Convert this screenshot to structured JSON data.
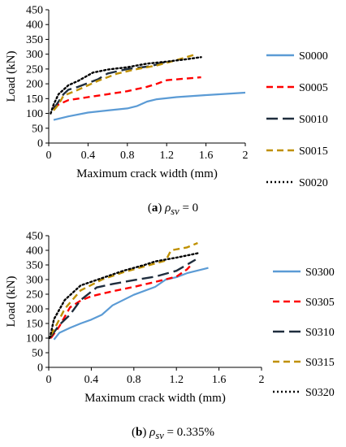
{
  "chart_data": [
    {
      "type": "line",
      "caption_letter": "a",
      "caption_symbol": "ρ",
      "caption_sub": "sv",
      "caption_value": " = 0",
      "xlabel": "Maximum crack width (mm)",
      "ylabel": "Load (kN)",
      "xlim": [
        0,
        2
      ],
      "ylim": [
        0,
        450
      ],
      "xticks": [
        "0",
        "0.4",
        "0.8",
        "1.2",
        "1.6",
        "2"
      ],
      "xtick_values": [
        0,
        0.4,
        0.8,
        1.2,
        1.6,
        2
      ],
      "yticks": [
        "0",
        "50",
        "100",
        "150",
        "200",
        "250",
        "300",
        "350",
        "400",
        "450"
      ],
      "ytick_values": [
        0,
        50,
        100,
        150,
        200,
        250,
        300,
        350,
        400,
        450
      ],
      "grid": false,
      "legend_position": "right",
      "series": [
        {
          "name": "S0000",
          "color": "#5b9bd5",
          "dash": "solid",
          "points": [
            [
              0.05,
              78
            ],
            [
              0.2,
              90
            ],
            [
              0.4,
              103
            ],
            [
              0.6,
              110
            ],
            [
              0.8,
              117
            ],
            [
              0.9,
              125
            ],
            [
              1.0,
              140
            ],
            [
              1.1,
              148
            ],
            [
              1.3,
              155
            ],
            [
              1.6,
              162
            ],
            [
              2.0,
              170
            ]
          ]
        },
        {
          "name": "S0005",
          "color": "#ff0000",
          "dash": "dash",
          "points": [
            [
              0.05,
              120
            ],
            [
              0.1,
              130
            ],
            [
              0.2,
              145
            ],
            [
              0.4,
              155
            ],
            [
              0.6,
              165
            ],
            [
              0.8,
              175
            ],
            [
              1.0,
              190
            ],
            [
              1.1,
              200
            ],
            [
              1.2,
              212
            ],
            [
              1.4,
              218
            ],
            [
              1.55,
              222
            ]
          ]
        },
        {
          "name": "S0010",
          "color": "#1f2d3d",
          "dash": "longdash",
          "points": [
            [
              0.05,
              115
            ],
            [
              0.1,
              140
            ],
            [
              0.15,
              165
            ],
            [
              0.2,
              180
            ],
            [
              0.3,
              190
            ],
            [
              0.5,
              215
            ],
            [
              0.6,
              235
            ],
            [
              0.8,
              250
            ],
            [
              1.0,
              258
            ],
            [
              1.1,
              265
            ],
            [
              1.2,
              275
            ]
          ]
        },
        {
          "name": "S0015",
          "color": "#bf9000",
          "dash": "dash",
          "points": [
            [
              0.05,
              110
            ],
            [
              0.1,
              130
            ],
            [
              0.15,
              160
            ],
            [
              0.3,
              180
            ],
            [
              0.5,
              210
            ],
            [
              0.7,
              235
            ],
            [
              0.9,
              250
            ],
            [
              1.1,
              262
            ],
            [
              1.3,
              280
            ],
            [
              1.5,
              300
            ]
          ]
        },
        {
          "name": "S0020",
          "color": "#000000",
          "dash": "dot",
          "points": [
            [
              0.02,
              100
            ],
            [
              0.05,
              130
            ],
            [
              0.1,
              165
            ],
            [
              0.2,
              195
            ],
            [
              0.3,
              210
            ],
            [
              0.45,
              238
            ],
            [
              0.6,
              248
            ],
            [
              0.8,
              256
            ],
            [
              1.0,
              268
            ],
            [
              1.2,
              275
            ],
            [
              1.4,
              283
            ],
            [
              1.55,
              290
            ]
          ]
        }
      ]
    },
    {
      "type": "line",
      "caption_letter": "b",
      "caption_symbol": "ρ",
      "caption_sub": "sv",
      "caption_value": " = 0.335%",
      "xlabel": "Maximum crack width (mm)",
      "ylabel": "Load (kN)",
      "xlim": [
        0,
        2
      ],
      "ylim": [
        0,
        450
      ],
      "xticks": [
        "0",
        "0.4",
        "0.8",
        "1.2",
        "1.6",
        "2"
      ],
      "xtick_values": [
        0,
        0.4,
        0.8,
        1.2,
        1.6,
        2
      ],
      "yticks": [
        "0",
        "50",
        "100",
        "150",
        "200",
        "250",
        "300",
        "350",
        "400",
        "450"
      ],
      "ytick_values": [
        0,
        50,
        100,
        150,
        200,
        250,
        300,
        350,
        400,
        450
      ],
      "grid": false,
      "legend_position": "right",
      "series": [
        {
          "name": "S0300",
          "color": "#5b9bd5",
          "dash": "solid",
          "points": [
            [
              0.05,
              95
            ],
            [
              0.1,
              118
            ],
            [
              0.2,
              135
            ],
            [
              0.3,
              150
            ],
            [
              0.4,
              163
            ],
            [
              0.5,
              180
            ],
            [
              0.6,
              212
            ],
            [
              0.8,
              248
            ],
            [
              1.0,
              275
            ],
            [
              1.1,
              300
            ],
            [
              1.2,
              308
            ],
            [
              1.3,
              322
            ],
            [
              1.5,
              340
            ]
          ]
        },
        {
          "name": "S0305",
          "color": "#ff0000",
          "dash": "dash",
          "points": [
            [
              0.02,
              100
            ],
            [
              0.1,
              140
            ],
            [
              0.2,
              205
            ],
            [
              0.3,
              228
            ],
            [
              0.4,
              243
            ],
            [
              0.6,
              260
            ],
            [
              0.8,
              275
            ],
            [
              1.0,
              292
            ],
            [
              1.2,
              310
            ],
            [
              1.3,
              335
            ],
            [
              1.35,
              355
            ]
          ]
        },
        {
          "name": "S0310",
          "color": "#1f2d3d",
          "dash": "longdash",
          "points": [
            [
              0.02,
              105
            ],
            [
              0.1,
              145
            ],
            [
              0.2,
              180
            ],
            [
              0.3,
              230
            ],
            [
              0.45,
              273
            ],
            [
              0.6,
              285
            ],
            [
              0.8,
              298
            ],
            [
              1.0,
              310
            ],
            [
              1.2,
              330
            ],
            [
              1.38,
              368
            ]
          ]
        },
        {
          "name": "S0315",
          "color": "#bf9000",
          "dash": "dash",
          "points": [
            [
              0.02,
              110
            ],
            [
              0.08,
              150
            ],
            [
              0.15,
              200
            ],
            [
              0.3,
              263
            ],
            [
              0.5,
              300
            ],
            [
              0.7,
              325
            ],
            [
              0.9,
              345
            ],
            [
              1.1,
              365
            ],
            [
              1.15,
              400
            ],
            [
              1.3,
              410
            ],
            [
              1.4,
              425
            ]
          ]
        },
        {
          "name": "S0320",
          "color": "#000000",
          "dash": "dot",
          "points": [
            [
              0.01,
              100
            ],
            [
              0.05,
              165
            ],
            [
              0.15,
              230
            ],
            [
              0.3,
              280
            ],
            [
              0.5,
              305
            ],
            [
              0.7,
              330
            ],
            [
              0.9,
              350
            ],
            [
              1.0,
              362
            ],
            [
              1.2,
              375
            ],
            [
              1.4,
              390
            ]
          ]
        }
      ]
    }
  ]
}
